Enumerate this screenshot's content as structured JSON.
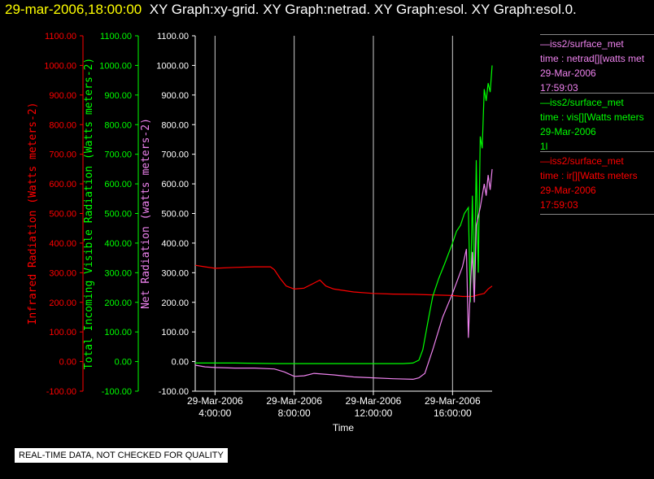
{
  "header": {
    "timestamp": "29-mar-2006,18:00:00",
    "graphs": "XY Graph:xy-grid.  XY Graph:netrad.  XY Graph:esol.  XY Graph:esol.0."
  },
  "note": "REAL-TIME DATA, NOT CHECKED FOR QUALITY",
  "legend": [
    {
      "lines": [
        "—iss2/surface_met",
        "time : netrad[][watts met",
        "29-Mar-2006",
        "17:59:03"
      ],
      "color": "#ee82ee"
    },
    {
      "lines": [
        "—iss2/surface_met",
        "time : vis[][Watts meters",
        "29-Mar-2006",
        "1l"
      ],
      "color": "#00ff00"
    },
    {
      "lines": [
        "—iss2/surface_met",
        "time : ir[][Watts meters",
        "29-Mar-2006",
        "17:59:03"
      ],
      "color": "#ff0000"
    }
  ],
  "chart_data": {
    "type": "line",
    "xlabel": "Time",
    "xlim": [
      3.0,
      18.0
    ],
    "x_ticks": [
      {
        "value": 4,
        "line1": "29-Mar-2006",
        "line2": "4:00:00"
      },
      {
        "value": 8,
        "line1": "29-Mar-2006",
        "line2": "8:00:00"
      },
      {
        "value": 12,
        "line1": "29-Mar-2006",
        "line2": "12:00:00"
      },
      {
        "value": 16,
        "line1": "29-Mar-2006",
        "line2": "16:00:00"
      }
    ],
    "ylim": [
      -100,
      1100
    ],
    "y_ticks": [
      -100,
      0,
      100,
      200,
      300,
      400,
      500,
      600,
      700,
      800,
      900,
      1000,
      1100
    ],
    "y_tick_labels": [
      "-100.00",
      "0.00",
      "100.00",
      "200.00",
      "300.00",
      "400.00",
      "500.00",
      "600.00",
      "700.00",
      "800.00",
      "900.00",
      "1000.00",
      "1100.00"
    ],
    "axes": [
      {
        "label": "Infrared Radiation (Watts meters-2)",
        "color": "#ff0000"
      },
      {
        "label": "Total Incoming Visible Radiation (Watts meters-2)",
        "color": "#00ff00"
      },
      {
        "label": "Net Radiation (watts meters-2)",
        "color": "#ee82ee"
      }
    ],
    "grid": "vertical",
    "series": [
      {
        "name": "ir",
        "color": "#ff0000",
        "x": [
          3.0,
          3.5,
          4.0,
          5.0,
          6.0,
          6.8,
          7.0,
          7.3,
          7.6,
          8.0,
          8.5,
          9.0,
          9.3,
          9.6,
          10.0,
          11.0,
          12.0,
          13.0,
          14.0,
          15.0,
          16.0,
          16.5,
          17.0,
          17.3,
          17.6,
          17.8,
          18.0
        ],
        "y": [
          325,
          320,
          315,
          318,
          320,
          320,
          310,
          280,
          255,
          245,
          248,
          265,
          275,
          255,
          245,
          235,
          230,
          228,
          227,
          225,
          223,
          220,
          220,
          225,
          230,
          245,
          255
        ]
      },
      {
        "name": "vis",
        "color": "#00ff00",
        "x": [
          3.0,
          5.0,
          7.0,
          8.0,
          10.0,
          12.0,
          13.5,
          14.0,
          14.3,
          14.5,
          14.8,
          15.0,
          15.3,
          15.6,
          16.0,
          16.2,
          16.4,
          16.6,
          16.8,
          16.9,
          17.0,
          17.1,
          17.2,
          17.3,
          17.4,
          17.5,
          17.6,
          17.7,
          17.8,
          17.9,
          18.0
        ],
        "y": [
          -5,
          -5,
          -7,
          -7,
          -7,
          -7,
          -7,
          -5,
          5,
          40,
          150,
          220,
          280,
          330,
          400,
          440,
          460,
          500,
          520,
          200,
          560,
          250,
          680,
          300,
          760,
          720,
          920,
          880,
          940,
          910,
          1000
        ]
      },
      {
        "name": "netrad",
        "color": "#ee82ee",
        "x": [
          3.0,
          3.5,
          4.0,
          5.0,
          6.0,
          7.0,
          7.5,
          8.0,
          8.5,
          9.0,
          10.0,
          11.0,
          12.0,
          13.0,
          14.0,
          14.3,
          14.6,
          15.0,
          15.5,
          16.0,
          16.5,
          16.7,
          16.8,
          16.9,
          17.0,
          17.1,
          17.2,
          17.4,
          17.6,
          17.7,
          17.8,
          17.9,
          18.0
        ],
        "y": [
          -12,
          -18,
          -20,
          -22,
          -22,
          -25,
          -35,
          -50,
          -48,
          -40,
          -45,
          -52,
          -55,
          -58,
          -60,
          -55,
          -40,
          40,
          150,
          230,
          320,
          380,
          80,
          250,
          370,
          200,
          460,
          520,
          600,
          560,
          630,
          580,
          650
        ]
      }
    ]
  }
}
